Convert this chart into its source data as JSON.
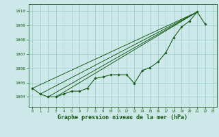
{
  "xlabel": "Graphe pression niveau de la mer (hPa)",
  "background_color": "#cce8e8",
  "grid_color": "#99cccc",
  "line_color": "#1a5c1a",
  "xlim": [
    -0.5,
    23.5
  ],
  "ylim": [
    1003.3,
    1010.5
  ],
  "yticks": [
    1004,
    1005,
    1006,
    1007,
    1008,
    1009,
    1010
  ],
  "xticks": [
    0,
    1,
    2,
    3,
    4,
    5,
    6,
    7,
    8,
    9,
    10,
    11,
    12,
    13,
    14,
    15,
    16,
    17,
    18,
    19,
    20,
    21,
    22,
    23
  ],
  "main_series_x": [
    0,
    1,
    2,
    3,
    4,
    5,
    6,
    7,
    8,
    9,
    10,
    11,
    12,
    13,
    14,
    15,
    16,
    17,
    18,
    19,
    20,
    21,
    22
  ],
  "main_series_y": [
    1004.6,
    1004.2,
    1004.0,
    1004.0,
    1004.2,
    1004.4,
    1004.4,
    1004.6,
    1005.3,
    1005.4,
    1005.55,
    1005.55,
    1005.55,
    1004.95,
    1005.85,
    1006.05,
    1006.45,
    1007.1,
    1008.15,
    1008.9,
    1009.3,
    1009.95,
    1009.1
  ],
  "straight_lines": [
    {
      "x0": 0,
      "y0": 1004.6,
      "x1": 21,
      "y1": 1009.95
    },
    {
      "x0": 1,
      "y0": 1004.2,
      "x1": 21,
      "y1": 1009.95
    },
    {
      "x0": 2,
      "y0": 1004.0,
      "x1": 21,
      "y1": 1009.95
    },
    {
      "x0": 3,
      "y0": 1004.0,
      "x1": 21,
      "y1": 1009.95
    }
  ]
}
